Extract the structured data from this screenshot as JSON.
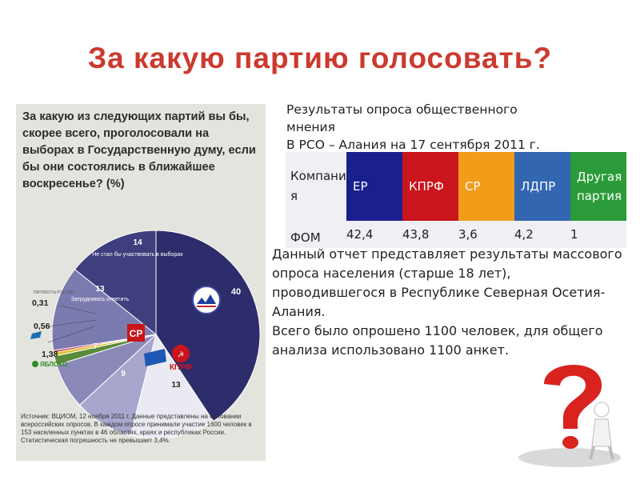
{
  "slide": {
    "title": "За какую партию голосовать?"
  },
  "infographic": {
    "question": "За какую из следующих партий вы бы, скорее всего, проголосовали на выборах в Государственную думу, если бы они состоялись в ближайшее воскресенье? (%)",
    "source": "Источник: ВЦИОМ, 12 ноября 2011 г. Данные представлены на основании всероссийских опросов. В каждом опросе принимали участие 1600 человек в 153 населенных пунктах в 46 областях, краях и республиках России. Статистическая погрешность не превышает 3,4%.",
    "labels": {
      "nonvoters_value": "14",
      "nonvoters_text": "Не стал бы участвовать в выборах",
      "undecided_value": "13",
      "undecided_text": "Затрудняюсь ответить",
      "er_value": "40",
      "kprf_value": "13",
      "ldpr_value": "9",
      "sr_value": "7",
      "patriots_value": "0,31",
      "pravoe_value": "0,56",
      "yabloko_value": "1,38",
      "kprf_logo": "КПРФ",
      "sr_logo": "СР",
      "yabloko_logo": "ЯБЛОКО",
      "patriots_logo": "ПАТРИОТЫ РОССИИ"
    }
  },
  "chart_data": {
    "type": "pie",
    "title": "За какую из следующих партий вы бы, скорее всего, проголосовали на выборах в Государственную думу, если бы они состоялись в ближайшее воскресенье? (%)",
    "slices": [
      {
        "label": "Единая Россия",
        "value": 40,
        "color": "#2e2d6b"
      },
      {
        "label": "КПРФ",
        "value": 13,
        "color": "#eaeaf2"
      },
      {
        "label": "ЛДПР",
        "value": 9,
        "color": "#a7a6cc"
      },
      {
        "label": "Справедливая Россия",
        "value": 7,
        "color": "#8a89b8"
      },
      {
        "label": "Яблоко",
        "value": 1.38,
        "color": "#5a8a3a"
      },
      {
        "label": "Правое дело",
        "value": 0.56,
        "color": "#e1c23a"
      },
      {
        "label": "Патриоты России",
        "value": 0.31,
        "color": "#c4221f"
      },
      {
        "label": "Затрудняюсь ответить",
        "value": 13,
        "color": "#7c7bb0"
      },
      {
        "label": "Не стал бы участвовать в выборах",
        "value": 14,
        "color": "#3f3e7e"
      }
    ]
  },
  "survey": {
    "heading_line1": "Результаты опроса общественного",
    "heading_line2": "мнения",
    "heading_line3": "В РСО – Алания на 17 сентября 2011 г.",
    "company_label": "Компания",
    "row_label": "ФОМ",
    "columns": [
      {
        "name": "ЕР",
        "value": "42,4",
        "color": "#1a1f8f"
      },
      {
        "name": "КПРФ",
        "value": "43,8",
        "color": "#c9151b"
      },
      {
        "name": "СР",
        "value": "3,6",
        "color": "#f29c1a"
      },
      {
        "name": "ЛДПР",
        "value": "4,2",
        "color": "#3266b0"
      },
      {
        "name": "Другая партия",
        "value": "1",
        "color": "#2a9b38"
      }
    ]
  },
  "report": {
    "para1": "Данный отчет представляет результаты массового опроса населения (старше 18 лет), проводившегося в Республике Северная Осетия-Алания.",
    "para2": "Всего было опрошено 1100 человек, для общего анализа использовано 1100 анкет."
  }
}
